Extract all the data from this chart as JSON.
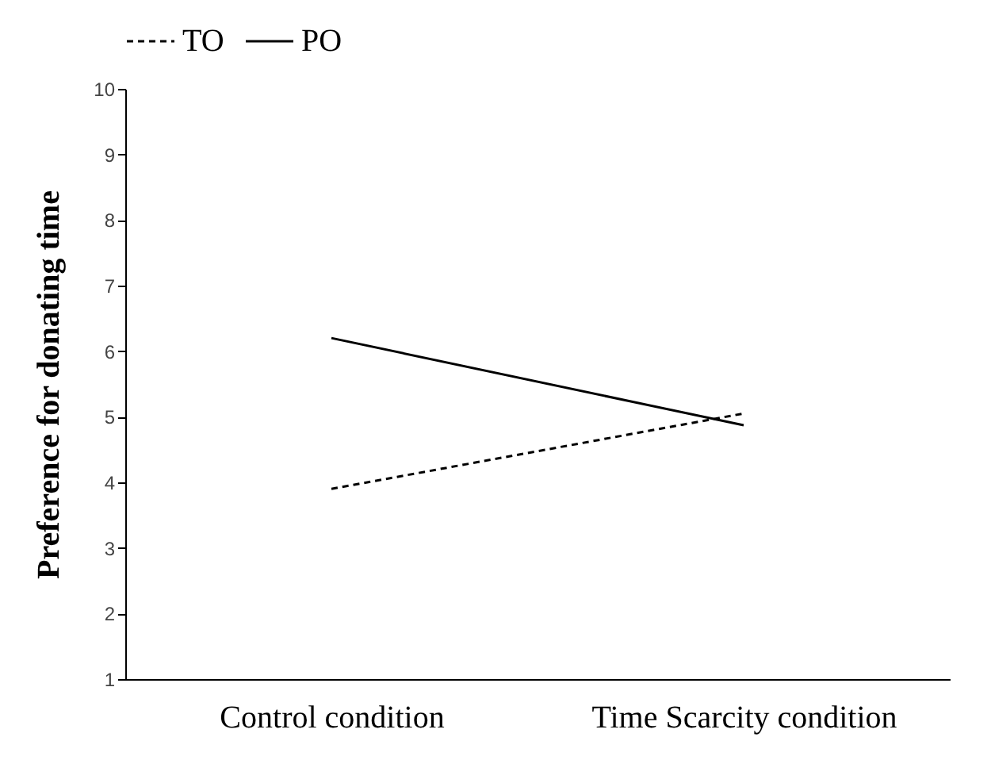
{
  "chart_data": {
    "type": "line",
    "ylabel": "Preference for donating time",
    "categories": [
      "Control condition",
      "Time Scarcity condition"
    ],
    "series": [
      {
        "name": "TO",
        "color": "#000000",
        "line_style": "dashed",
        "values": [
          3.9,
          5.05
        ]
      },
      {
        "name": "PO",
        "color": "#000000",
        "line_style": "solid",
        "values": [
          6.2,
          4.87
        ]
      }
    ],
    "ylim": [
      1,
      10
    ],
    "yticks": [
      1,
      2,
      3,
      4,
      5,
      6,
      7,
      8,
      9,
      10
    ],
    "grid": false,
    "legend": "top",
    "marker": "none"
  }
}
